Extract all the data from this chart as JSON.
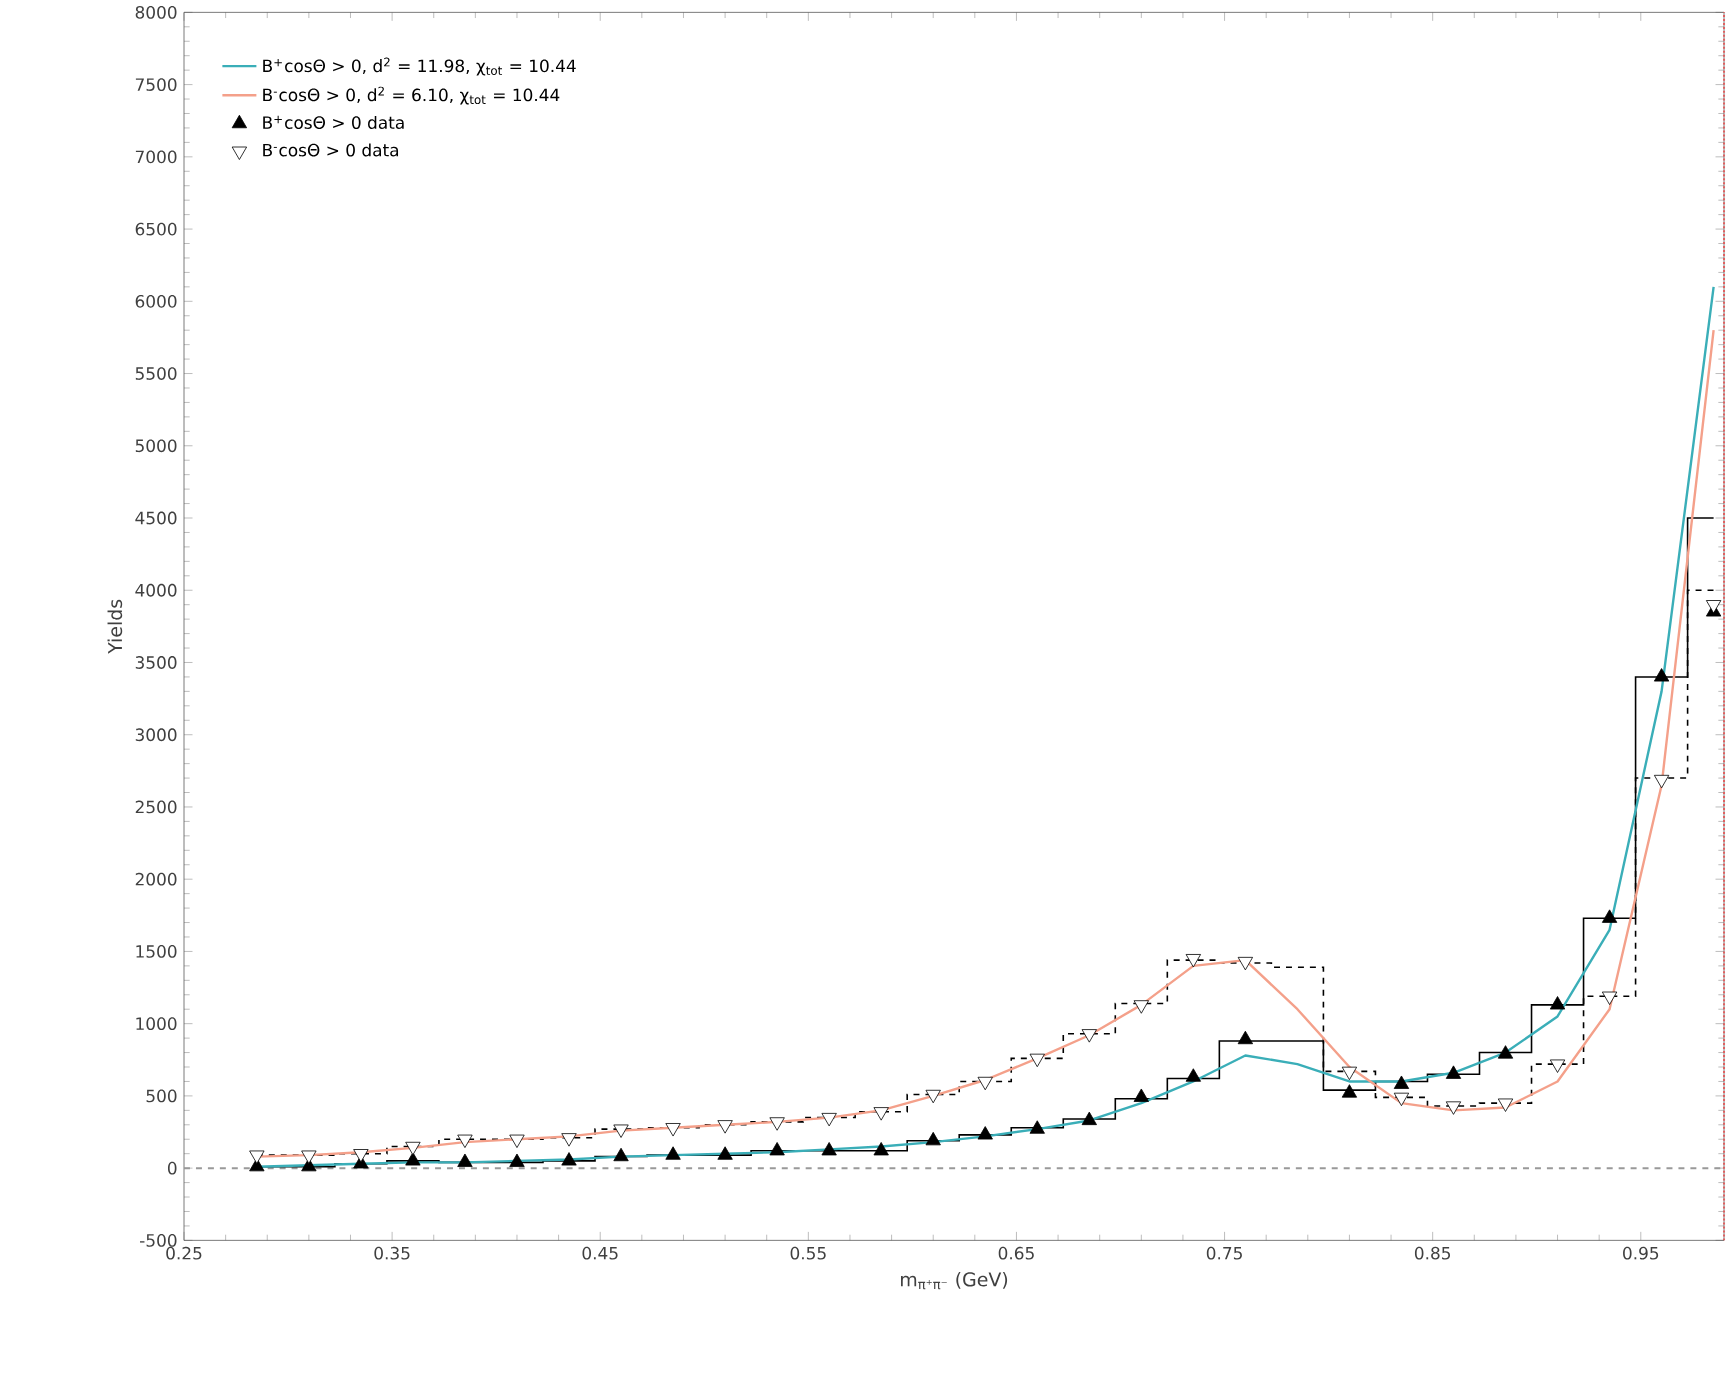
{
  "chart_data": {
    "type": "scatter",
    "xlabel": "m$_{π⁺π⁻}$ (GeV)",
    "ylabel": "Yields",
    "xlim": [
      0.25,
      0.99
    ],
    "ylim": [
      -500,
      8000
    ],
    "xticks": [
      0.25,
      0.35,
      0.45,
      0.55,
      0.65,
      0.75,
      0.85,
      0.95
    ],
    "yticks": [
      -500,
      0,
      500,
      1000,
      1500,
      2000,
      2500,
      3000,
      3500,
      4000,
      4500,
      5000,
      5500,
      6000,
      6500,
      7000,
      7500,
      8000
    ],
    "x": [
      0.285,
      0.31,
      0.335,
      0.36,
      0.385,
      0.41,
      0.435,
      0.46,
      0.485,
      0.51,
      0.535,
      0.56,
      0.585,
      0.61,
      0.635,
      0.66,
      0.685,
      0.71,
      0.735,
      0.76,
      0.785,
      0.81,
      0.835,
      0.86,
      0.885,
      0.91,
      0.935,
      0.96,
      0.985
    ],
    "legend": "top left",
    "series": [
      {
        "type": "step",
        "color": "#000000",
        "line_style": "solid",
        "values": [
          10,
          10,
          30,
          50,
          40,
          40,
          50,
          80,
          90,
          90,
          120,
          120,
          120,
          190,
          230,
          280,
          340,
          480,
          620,
          880,
          880,
          540,
          600,
          650,
          800,
          1130,
          1730,
          3400,
          4500
        ]
      },
      {
        "type": "step",
        "color": "#000000",
        "line_style": "dashed",
        "values": [
          90,
          90,
          100,
          150,
          200,
          200,
          210,
          270,
          280,
          300,
          320,
          350,
          390,
          510,
          600,
          760,
          930,
          1140,
          1440,
          1420,
          1390,
          670,
          490,
          430,
          450,
          720,
          1190,
          2700,
          4000
        ]
      },
      {
        "type": "line",
        "name": "B$^{+}$cosΘ > 0, d$^{2}$ = 11.98, χ$_{tot}$ = 10.44",
        "color": "#3aaeb8",
        "values": [
          10,
          20,
          30,
          40,
          40,
          50,
          60,
          80,
          90,
          100,
          110,
          130,
          150,
          180,
          220,
          270,
          330,
          450,
          600,
          780,
          720,
          600,
          600,
          660,
          800,
          1050,
          1650,
          3300,
          6100
        ]
      },
      {
        "type": "line",
        "name": "B$^{-}$cosΘ > 0, d$^{2}$ = 6.10, χ$_{tot}$ = 10.44",
        "color": "#f4a08a",
        "values": [
          80,
          90,
          110,
          140,
          180,
          200,
          220,
          260,
          280,
          300,
          320,
          350,
          400,
          500,
          610,
          760,
          920,
          1130,
          1400,
          1440,
          1100,
          700,
          450,
          400,
          420,
          600,
          1100,
          2650,
          5800
        ]
      },
      {
        "name": "B$^{+}$cosΘ > 0 data",
        "marker": "triangle",
        "color": "#000000",
        "values": [
          10,
          10,
          30,
          50,
          40,
          40,
          50,
          80,
          90,
          90,
          120,
          120,
          120,
          190,
          230,
          270,
          330,
          490,
          630,
          890,
          null,
          520,
          580,
          650,
          790,
          1130,
          1730,
          3400,
          3850
        ]
      },
      {
        "name": "B$^{-}$cosΘ > 0 data",
        "marker": "triangle",
        "color": "#ffffff",
        "values": [
          90,
          90,
          100,
          150,
          200,
          200,
          210,
          270,
          280,
          300,
          320,
          350,
          390,
          510,
          600,
          760,
          930,
          1130,
          1450,
          1430,
          null,
          670,
          490,
          430,
          450,
          720,
          1190,
          2690,
          3900
        ]
      }
    ],
    "ref_lines": [
      {
        "axis": "y",
        "value": 0,
        "color": "#999999",
        "line_style": "dashed"
      },
      {
        "axis": "x",
        "value": 0.99,
        "color": "#e06060",
        "line_style": "dotted"
      }
    ]
  }
}
